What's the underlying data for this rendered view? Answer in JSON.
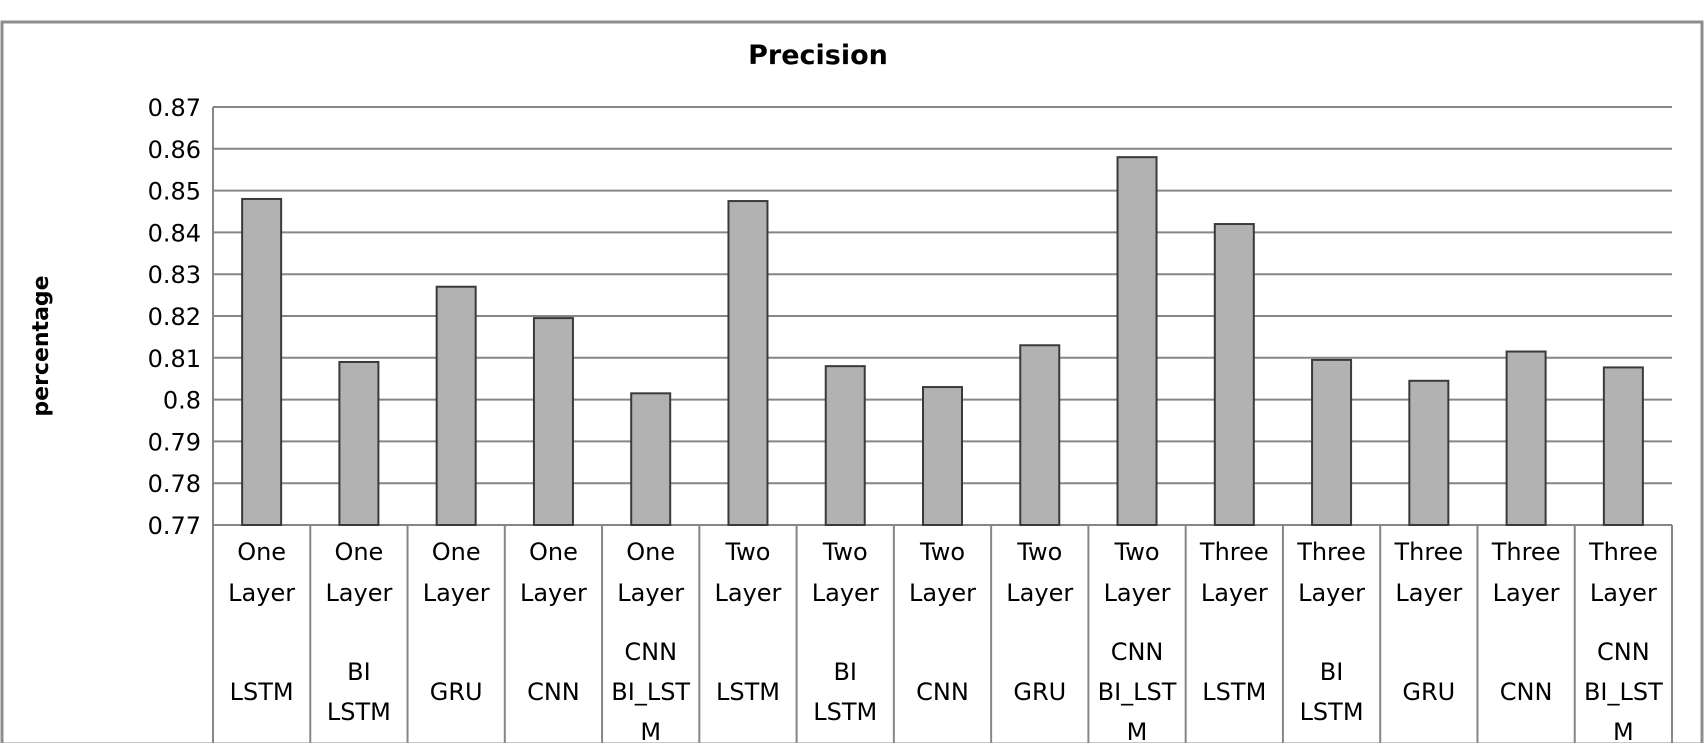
{
  "chart_data": {
    "type": "bar",
    "title": "Precision",
    "xlabel": "",
    "ylabel": "percentage",
    "ylim": [
      0.77,
      0.87
    ],
    "yticks": [
      "0.87",
      "0.86",
      "0.85",
      "0.84",
      "0.83",
      "0.82",
      "0.81",
      "0.8",
      "0.79",
      "0.78",
      "0.77"
    ],
    "ytick_values": [
      0.87,
      0.86,
      0.85,
      0.84,
      0.83,
      0.82,
      0.81,
      0.8,
      0.79,
      0.78,
      0.77
    ],
    "grid": true,
    "legend": "none",
    "bar_color": "#b2b2b2",
    "categories": [
      {
        "group": [
          "One",
          "Layer"
        ],
        "model": [
          "LSTM"
        ]
      },
      {
        "group": [
          "One",
          "Layer"
        ],
        "model": [
          "BI",
          "LSTM"
        ]
      },
      {
        "group": [
          "One",
          "Layer"
        ],
        "model": [
          "GRU"
        ]
      },
      {
        "group": [
          "One",
          "Layer"
        ],
        "model": [
          "CNN"
        ]
      },
      {
        "group": [
          "One",
          "Layer"
        ],
        "model": [
          "CNN",
          "BI_LST",
          "M"
        ]
      },
      {
        "group": [
          "Two",
          "Layer"
        ],
        "model": [
          "LSTM"
        ]
      },
      {
        "group": [
          "Two",
          "Layer"
        ],
        "model": [
          "BI",
          "LSTM"
        ]
      },
      {
        "group": [
          "Two",
          "Layer"
        ],
        "model": [
          "CNN"
        ]
      },
      {
        "group": [
          "Two",
          "Layer"
        ],
        "model": [
          "GRU"
        ]
      },
      {
        "group": [
          "Two",
          "Layer"
        ],
        "model": [
          "CNN",
          "BI_LST",
          "M"
        ]
      },
      {
        "group": [
          "Three",
          "Layer"
        ],
        "model": [
          "LSTM"
        ]
      },
      {
        "group": [
          "Three",
          "Layer"
        ],
        "model": [
          "BI",
          "LSTM"
        ]
      },
      {
        "group": [
          "Three",
          "Layer"
        ],
        "model": [
          "GRU"
        ]
      },
      {
        "group": [
          "Three",
          "Layer"
        ],
        "model": [
          "CNN"
        ]
      },
      {
        "group": [
          "Three",
          "Layer"
        ],
        "model": [
          "CNN",
          "BI_LST",
          "M"
        ]
      }
    ],
    "values": [
      0.848,
      0.809,
      0.827,
      0.8195,
      0.8015,
      0.8475,
      0.808,
      0.803,
      0.813,
      0.858,
      0.842,
      0.8095,
      0.8045,
      0.8115,
      0.8077
    ]
  }
}
